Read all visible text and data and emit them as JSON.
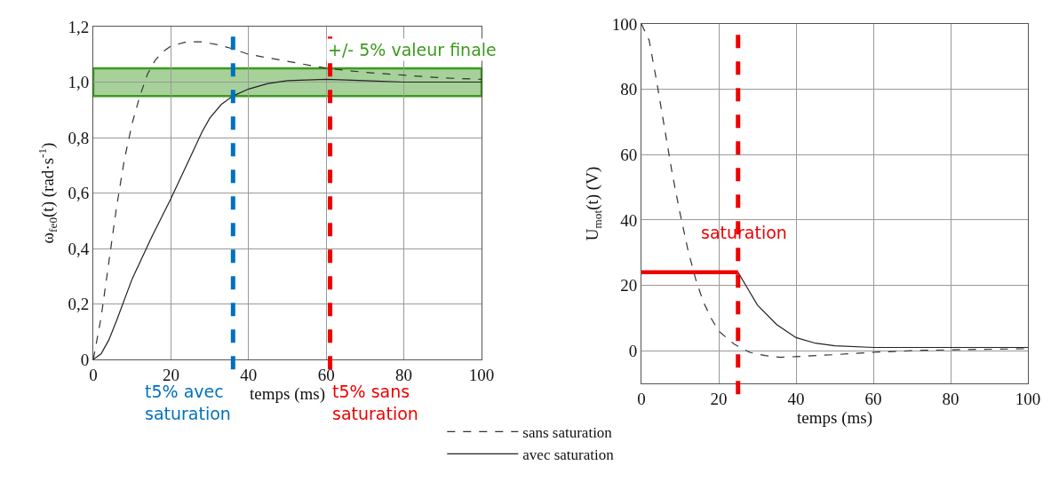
{
  "chart_data": [
    {
      "type": "line",
      "xlabel": "temps (ms)",
      "ylabel": "ω$_{fe0}$(t) (rad·s$^{-1}$)",
      "xlim": [
        0,
        100
      ],
      "xticks": [
        0,
        20,
        40,
        60,
        80,
        100
      ],
      "ylim": [
        0,
        1.2
      ],
      "yticks": [
        0,
        {
          "value": 0.2,
          "label": "0,2"
        },
        {
          "value": 0.4,
          "label": "0,4"
        },
        {
          "value": 0.6,
          "label": "0,6"
        },
        {
          "value": 0.8,
          "label": "0,8"
        },
        {
          "value": 1.0,
          "label": "1,0"
        },
        {
          "value": 1.2,
          "label": "1,2"
        }
      ],
      "grid": true,
      "legend": "bottom right",
      "series": [
        {
          "name": "sans saturation",
          "color": "#333333",
          "line_style": "dashed",
          "x": [
            0,
            2,
            4,
            6,
            8,
            10,
            12,
            14,
            16,
            18,
            20,
            24,
            28,
            32,
            36,
            40,
            50,
            60,
            70,
            80,
            90,
            100
          ],
          "values": [
            0,
            0.15,
            0.35,
            0.55,
            0.72,
            0.85,
            0.95,
            1.03,
            1.08,
            1.11,
            1.13,
            1.145,
            1.145,
            1.135,
            1.12,
            1.1,
            1.075,
            1.05,
            1.035,
            1.025,
            1.015,
            1.01
          ]
        },
        {
          "name": "avec saturation",
          "color": "#222222",
          "line_style": "solid",
          "x": [
            0,
            2,
            4,
            6,
            10,
            15,
            20,
            25,
            28,
            30,
            33,
            36,
            40,
            45,
            50,
            60,
            70,
            80,
            100
          ],
          "values": [
            0,
            0.02,
            0.07,
            0.14,
            0.29,
            0.44,
            0.58,
            0.73,
            0.82,
            0.87,
            0.92,
            0.95,
            0.975,
            0.995,
            1.005,
            1.01,
            1.005,
            1.0,
            1.0
          ]
        }
      ],
      "bands": [
        {
          "axis": "y",
          "from": 0.95,
          "to": 1.05,
          "label": "+/- 5% valeur finale",
          "color": "#3c9a1e"
        }
      ],
      "ref_lines": [
        {
          "axis": "x",
          "value": 36,
          "label": "t5% avec saturation",
          "color": "#0070c0",
          "line_style": "dashed"
        },
        {
          "axis": "x",
          "value": 61,
          "label": "t5% sans saturation",
          "color": "#ee0000",
          "line_style": "dashed"
        }
      ]
    },
    {
      "type": "line",
      "xlabel": "temps (ms)",
      "ylabel": "U$_{mot}$(t) (V)",
      "xlim": [
        0,
        100
      ],
      "xticks": [
        0,
        20,
        40,
        60,
        80,
        100
      ],
      "ylim": [
        -10,
        100
      ],
      "yticks": [
        0,
        20,
        40,
        60,
        80,
        100
      ],
      "grid": true,
      "annotations": [
        "saturation"
      ],
      "series": [
        {
          "color": "#333333",
          "line_style": "dashed",
          "x": [
            0,
            2,
            4,
            6,
            8,
            10,
            12,
            14,
            16,
            18,
            20,
            24,
            28,
            32,
            36,
            40,
            50,
            60,
            70,
            80,
            100
          ],
          "values": [
            100,
            95,
            82,
            68,
            54,
            42,
            31,
            22,
            15,
            10,
            6,
            2,
            -0.5,
            -1.5,
            -2,
            -1.8,
            -1.2,
            -0.5,
            0,
            0.3,
            0.6
          ]
        },
        {
          "color": "#222222",
          "line_style": "solid",
          "x": [
            25,
            27,
            30,
            35,
            40,
            45,
            50,
            60,
            80,
            100
          ],
          "values": [
            24,
            20,
            14,
            8,
            4,
            2.3,
            1.5,
            1,
            1,
            1
          ]
        },
        {
          "color": "#ee0000",
          "line_style": "solid",
          "x": [
            0,
            25
          ],
          "values": [
            24,
            24
          ]
        }
      ],
      "ref_lines": [
        {
          "axis": "x",
          "value": 25,
          "color": "#ee0000",
          "line_style": "dashed"
        }
      ]
    }
  ]
}
